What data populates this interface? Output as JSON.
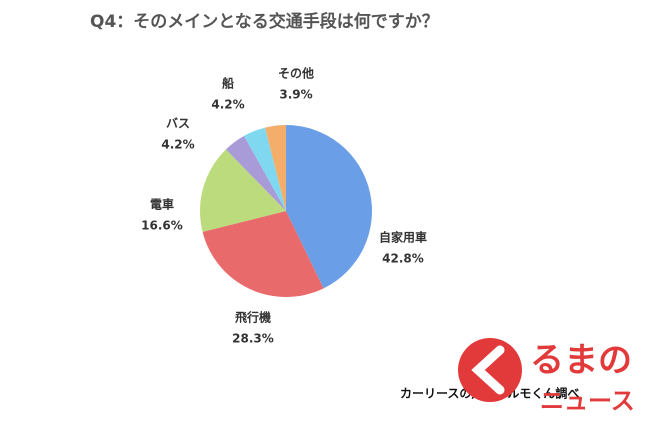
{
  "chart_data": {
    "type": "pie",
    "title": "Q4：そのメインとなる交通手段は何ですか？",
    "categories": [
      "自家用車",
      "飛行機",
      "電車",
      "バス",
      "船",
      "その他"
    ],
    "values": [
      42.8,
      28.3,
      16.6,
      4.2,
      4.2,
      3.9
    ],
    "value_labels": [
      "42.8%",
      "28.3%",
      "16.6%",
      "4.2%",
      "4.2%",
      "3.9%"
    ],
    "colors": [
      "#6a9fe8",
      "#e86a6a",
      "#bcdb7c",
      "#a99ad8",
      "#7fd8f0",
      "#f4ae6a"
    ],
    "source": "カーリースの定額カルモくん調べ"
  },
  "logo": {
    "line1": "るまの",
    "line2": "ニュース"
  }
}
